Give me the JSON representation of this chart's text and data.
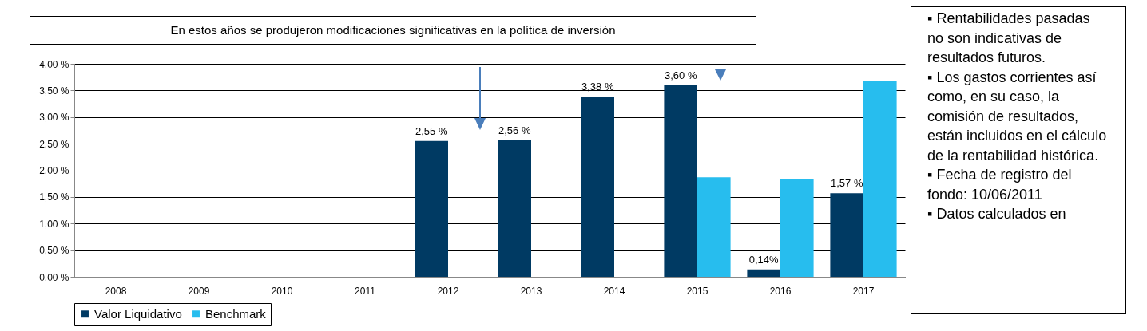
{
  "chart_data": {
    "type": "bar",
    "title": "En estos años se produjeron modificaciones significativas en la política de inversión",
    "categories": [
      "2008",
      "2009",
      "2010",
      "2011",
      "2012",
      "2013",
      "2014",
      "2015",
      "2016",
      "2017"
    ],
    "series": [
      {
        "name": "Valor Liquidativo",
        "color": "#003a63",
        "values": [
          null,
          null,
          null,
          null,
          2.55,
          2.56,
          3.38,
          3.6,
          0.14,
          1.57
        ],
        "value_labels": [
          null,
          null,
          null,
          null,
          "2,55 %",
          "2,56 %",
          "3,38 %",
          "3,60 %",
          "0,14%",
          "1,57 %"
        ]
      },
      {
        "name": "Benchmark",
        "color": "#27bdee",
        "values": [
          null,
          null,
          null,
          null,
          null,
          null,
          null,
          1.87,
          1.83,
          3.68
        ]
      }
    ],
    "ylim": [
      0,
      4
    ],
    "yticks": [
      {
        "value": 0,
        "label": "0,00 %"
      },
      {
        "value": 0.5,
        "label": "0,50 %"
      },
      {
        "value": 1,
        "label": "1,00 %"
      },
      {
        "value": 1.5,
        "label": "1,50 %"
      },
      {
        "value": 2,
        "label": "2,00 %"
      },
      {
        "value": 2.5,
        "label": "2,50 %"
      },
      {
        "value": 3,
        "label": "3,00 %"
      },
      {
        "value": 3.5,
        "label": "3,50 %"
      },
      {
        "value": 4,
        "label": "4,00 %"
      }
    ],
    "grid": "y",
    "legend": "bottom",
    "annotations": [
      "▪ Rentabilidades pasadas no son indicativas de resultados futuros.",
      "▪ Los gastos corrientes así como, en su caso, la comisión de resultados, están incluidos en el cálculo de la rentabilidad histórica.",
      "▪ Fecha de registro del fondo: 10/06/2011",
      "▪ Datos calculados en"
    ]
  }
}
